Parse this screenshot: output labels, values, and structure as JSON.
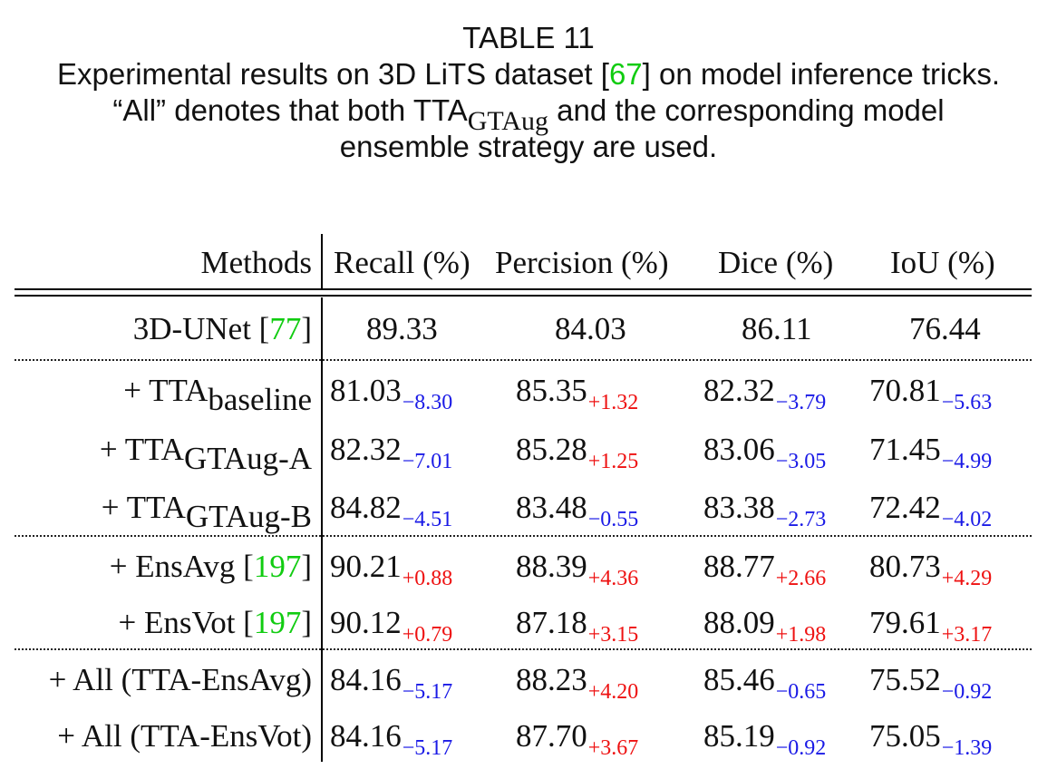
{
  "caption": {
    "label": "TABLE 11",
    "line1_pre": "Experimental results on 3D LiTS dataset [",
    "line1_cite": "67",
    "line1_post": "] on model inference tricks.",
    "line2_pre": "“All” denotes that both TTA",
    "line2_sub": "GTAug",
    "line2_post": " and the corresponding model",
    "line3": "ensemble strategy are used."
  },
  "table": {
    "headers": [
      "Methods",
      "Recall (%)",
      "Percision (%)",
      "Dice (%)",
      "IoU (%)"
    ],
    "baseline": {
      "method": "3D-UNet [",
      "cite": "77",
      "method_post": "]",
      "values": [
        "89.33",
        "84.03",
        "86.11",
        "76.44"
      ]
    },
    "rows": [
      {
        "method_pre": "+ TTA",
        "method_sub": "baseline",
        "cells": [
          {
            "value": "81.03",
            "delta": "−8.30",
            "sign": "neg"
          },
          {
            "value": "85.35",
            "delta": "+1.32",
            "sign": "pos"
          },
          {
            "value": "82.32",
            "delta": "−3.79",
            "sign": "neg"
          },
          {
            "value": "70.81",
            "delta": "−5.63",
            "sign": "neg"
          }
        ]
      },
      {
        "method_pre": "+ TTA",
        "method_sub": "GTAug-A",
        "cells": [
          {
            "value": "82.32",
            "delta": "−7.01",
            "sign": "neg"
          },
          {
            "value": "85.28",
            "delta": "+1.25",
            "sign": "pos"
          },
          {
            "value": "83.06",
            "delta": "−3.05",
            "sign": "neg"
          },
          {
            "value": "71.45",
            "delta": "−4.99",
            "sign": "neg"
          }
        ]
      },
      {
        "method_pre": "+ TTA",
        "method_sub": "GTAug-B",
        "cells": [
          {
            "value": "84.82",
            "delta": "−4.51",
            "sign": "neg"
          },
          {
            "value": "83.48",
            "delta": "−0.55",
            "sign": "neg"
          },
          {
            "value": "83.38",
            "delta": "−2.73",
            "sign": "neg"
          },
          {
            "value": "72.42",
            "delta": "−4.02",
            "sign": "neg"
          }
        ]
      },
      {
        "method_pre": "+ EnsAvg [",
        "method_cite": "197",
        "method_post": "]",
        "cells": [
          {
            "value": "90.21",
            "delta": "+0.88",
            "sign": "pos"
          },
          {
            "value": "88.39",
            "delta": "+4.36",
            "sign": "pos"
          },
          {
            "value": "88.77",
            "delta": "+2.66",
            "sign": "pos"
          },
          {
            "value": "80.73",
            "delta": "+4.29",
            "sign": "pos"
          }
        ]
      },
      {
        "method_pre": "+ EnsVot [",
        "method_cite": "197",
        "method_post": "]",
        "cells": [
          {
            "value": "90.12",
            "delta": "+0.79",
            "sign": "pos"
          },
          {
            "value": "87.18",
            "delta": "+3.15",
            "sign": "pos"
          },
          {
            "value": "88.09",
            "delta": "+1.98",
            "sign": "pos"
          },
          {
            "value": "79.61",
            "delta": "+3.17",
            "sign": "pos"
          }
        ]
      },
      {
        "method_pre": "+ All (TTA-EnsAvg)",
        "cells": [
          {
            "value": "84.16",
            "delta": "−5.17",
            "sign": "neg"
          },
          {
            "value": "88.23",
            "delta": "+4.20",
            "sign": "pos"
          },
          {
            "value": "85.46",
            "delta": "−0.65",
            "sign": "neg"
          },
          {
            "value": "75.52",
            "delta": "−0.92",
            "sign": "neg"
          }
        ]
      },
      {
        "method_pre": "+ All (TTA-EnsVot)",
        "cells": [
          {
            "value": "84.16",
            "delta": "−5.17",
            "sign": "neg"
          },
          {
            "value": "87.70",
            "delta": "+3.67",
            "sign": "pos"
          },
          {
            "value": "85.19",
            "delta": "−0.92",
            "sign": "neg"
          },
          {
            "value": "75.05",
            "delta": "−1.39",
            "sign": "neg"
          }
        ]
      }
    ]
  },
  "colors": {
    "citation": "#11cc11",
    "positive_delta": "#ee1111",
    "negative_delta": "#1a1ae6"
  }
}
